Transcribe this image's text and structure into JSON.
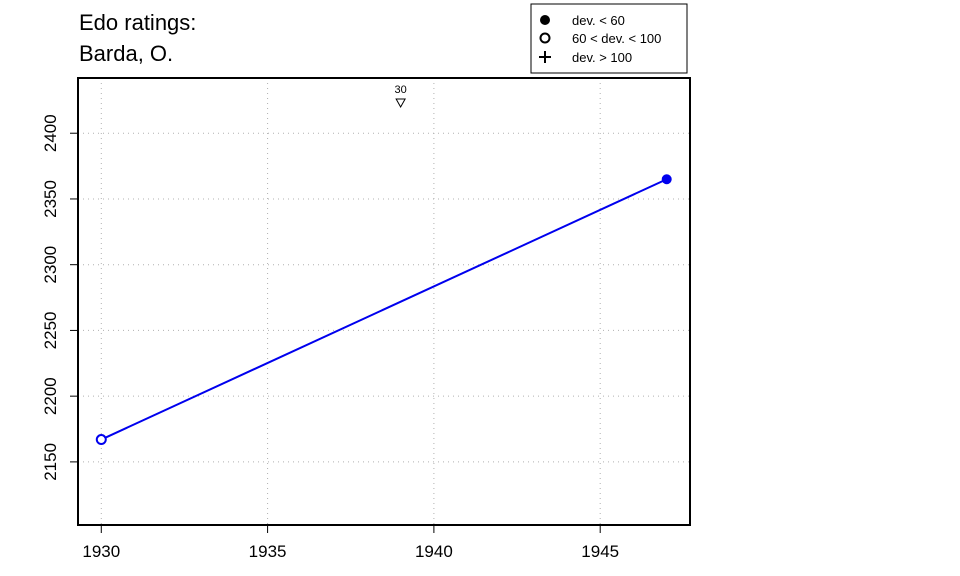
{
  "chart_data": {
    "type": "line",
    "title_lines": [
      "Edo ratings:",
      "Barda, O."
    ],
    "xlabel": "",
    "ylabel": "",
    "xlim": [
      1929.3,
      1947.7
    ],
    "ylim": [
      2102,
      2442
    ],
    "x_ticks": [
      1930,
      1935,
      1940,
      1945
    ],
    "y_ticks": [
      2150,
      2200,
      2250,
      2300,
      2350,
      2400
    ],
    "grid": true,
    "series_color": "#0000ee",
    "series": [
      {
        "points": [
          {
            "x": 1930,
            "y": 2167,
            "deviation_class": "60 < dev. < 100"
          },
          {
            "x": 1947,
            "y": 2365,
            "deviation_class": "dev. < 60"
          }
        ]
      }
    ],
    "annotations": [
      {
        "x": 1939,
        "y": 2423,
        "label": "30",
        "marker": "down-triangle"
      }
    ],
    "legend": {
      "placement": "top-right",
      "entries": [
        {
          "marker": "filled-circle",
          "label": "dev. < 60"
        },
        {
          "marker": "open-circle",
          "label": "60 < dev. < 100"
        },
        {
          "marker": "plus",
          "label": "dev. > 100"
        }
      ]
    }
  }
}
